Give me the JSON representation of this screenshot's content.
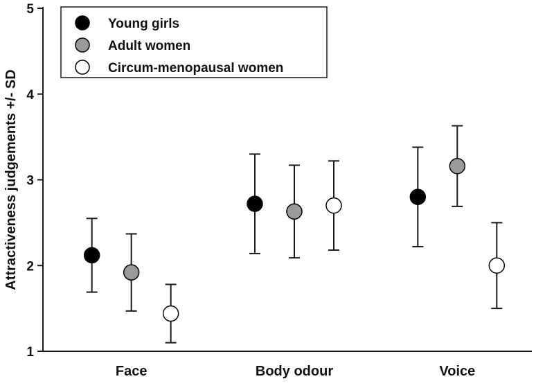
{
  "colors": {
    "background": "#ffffff",
    "axis": "#1a1a1a",
    "text": "#111111",
    "young_girls_fill": "#000000",
    "adult_women_fill": "#9a9a9a",
    "circum_menopausal_fill": "#ffffff",
    "marker_stroke": "#000000"
  },
  "chart_data": {
    "type": "scatter",
    "title": "",
    "xlabel": "",
    "ylabel": "Attractiveness judgements +/- SD",
    "ylim": [
      1,
      5
    ],
    "yticks": [
      1,
      2,
      3,
      4,
      5
    ],
    "grid": false,
    "legend_position": "top-left",
    "error_bars": "+/- SD",
    "categories": [
      "Face",
      "Body odour",
      "Voice"
    ],
    "series": [
      {
        "name": "Young girls",
        "marker": "filled-black-circle",
        "marker_fill": "#000000",
        "marker_stroke": "#000000",
        "values": [
          2.12,
          2.72,
          2.8
        ],
        "sd": [
          0.43,
          0.58,
          0.58
        ]
      },
      {
        "name": "Adult women",
        "marker": "filled-gray-circle",
        "marker_fill": "#9a9a9a",
        "marker_stroke": "#000000",
        "values": [
          1.92,
          2.63,
          3.16
        ],
        "sd": [
          0.45,
          0.54,
          0.47
        ]
      },
      {
        "name": "Circum-menopausal women",
        "marker": "open-white-circle",
        "marker_fill": "#ffffff",
        "marker_stroke": "#000000",
        "values": [
          1.44,
          2.7,
          2.0
        ],
        "sd": [
          0.34,
          0.52,
          0.5
        ]
      }
    ]
  }
}
